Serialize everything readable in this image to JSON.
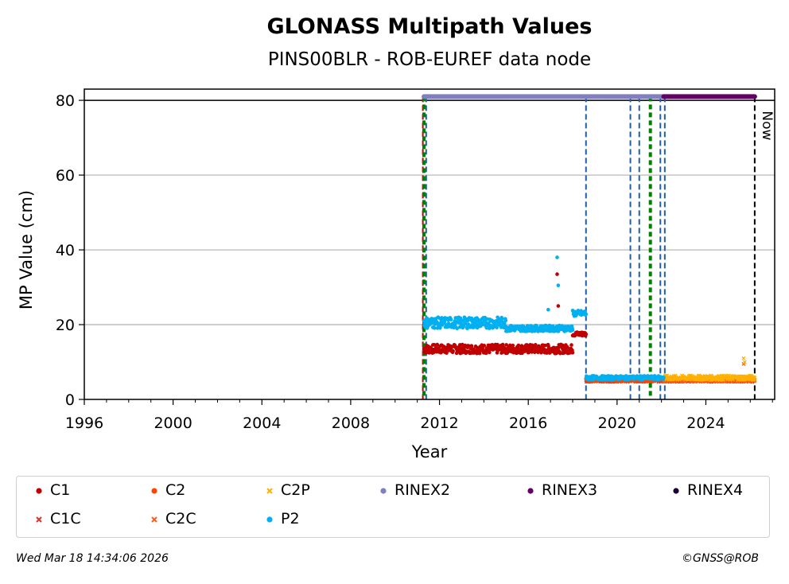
{
  "chart_data": {
    "type": "scatter",
    "title": "GLONASS Multipath Values",
    "subtitle": "PINS00BLR - ROB-EUREF data node",
    "xlabel": "Year",
    "ylabel": "MP Value (cm)",
    "xlim": [
      1996,
      2027.1
    ],
    "ylim": [
      0,
      83
    ],
    "xticks": [
      1996,
      2000,
      2004,
      2008,
      2012,
      2016,
      2020,
      2024
    ],
    "yticks": [
      0,
      20,
      40,
      60,
      80
    ],
    "grid": "horizontal",
    "legend_position": "bottom",
    "now_label": "Now",
    "now_year": 2026.2,
    "status_line_value": 81,
    "rinex_periods": [
      {
        "format": "RINEX2",
        "start": 2011.3,
        "end": 2022.1
      },
      {
        "format": "RINEX3",
        "start": 2022.1,
        "end": 2026.2
      }
    ],
    "event_lines": [
      {
        "type": "receiver_change",
        "year": 2011.25,
        "color": "#c00000"
      },
      {
        "type": "antenna_change",
        "year": 2011.3,
        "color": "#008000"
      },
      {
        "type": "equipment_change",
        "year": 2011.4,
        "color": "#1f5fa8"
      },
      {
        "type": "equipment_change",
        "year": 2018.6,
        "color": "#1f5fa8"
      },
      {
        "type": "equipment_change",
        "year": 2020.6,
        "color": "#1f5fa8"
      },
      {
        "type": "equipment_change",
        "year": 2021.0,
        "color": "#1f5fa8"
      },
      {
        "type": "antenna_change",
        "year": 2021.5,
        "color": "#008000"
      },
      {
        "type": "equipment_change",
        "year": 2021.95,
        "color": "#1f5fa8"
      },
      {
        "type": "equipment_change",
        "year": 2022.15,
        "color": "#1f5fa8"
      }
    ],
    "series": [
      {
        "name": "C1",
        "color": "#c00000",
        "marker": "dot",
        "segments": [
          {
            "start": 2011.3,
            "end": 2018.0,
            "level": 13.5,
            "spread": 1.2
          },
          {
            "start": 2018.0,
            "end": 2018.6,
            "level": 17.5,
            "spread": 0.6
          }
        ],
        "outliers": [
          [
            2017.3,
            33.5
          ],
          [
            2017.35,
            25
          ]
        ]
      },
      {
        "name": "C1C",
        "color": "#e0302a",
        "marker": "x",
        "segments": [
          {
            "start": 2018.6,
            "end": 2026.2,
            "level": 5.0,
            "spread": 0.3
          }
        ],
        "outliers": []
      },
      {
        "name": "C2",
        "color": "#ff4500",
        "marker": "dot",
        "segments": [
          {
            "start": 2018.6,
            "end": 2022.1,
            "level": 5.2,
            "spread": 0.3
          }
        ],
        "outliers": []
      },
      {
        "name": "C2C",
        "color": "#ff5a1a",
        "marker": "x",
        "segments": [
          {
            "start": 2022.1,
            "end": 2026.2,
            "level": 5.2,
            "spread": 0.4
          }
        ],
        "outliers": [
          [
            2025.7,
            9.5
          ]
        ]
      },
      {
        "name": "C2P",
        "color": "#ffb000",
        "marker": "x",
        "segments": [
          {
            "start": 2022.1,
            "end": 2026.2,
            "level": 5.8,
            "spread": 0.6
          }
        ],
        "outliers": [
          [
            2025.7,
            11
          ],
          [
            2025.75,
            10
          ]
        ]
      },
      {
        "name": "P2",
        "color": "#00b0f0",
        "marker": "dot",
        "segments": [
          {
            "start": 2011.3,
            "end": 2015.0,
            "level": 20.5,
            "spread": 1.5
          },
          {
            "start": 2015.0,
            "end": 2018.0,
            "level": 19.0,
            "spread": 0.8
          },
          {
            "start": 2018.0,
            "end": 2018.6,
            "level": 23.0,
            "spread": 0.8
          },
          {
            "start": 2018.6,
            "end": 2022.1,
            "level": 5.8,
            "spread": 0.5
          }
        ],
        "outliers": [
          [
            2017.3,
            38
          ],
          [
            2017.35,
            30.5
          ],
          [
            2016.9,
            24
          ]
        ]
      }
    ]
  },
  "legend": {
    "items": [
      {
        "label": "C1",
        "color": "#c00000",
        "marker": "dot"
      },
      {
        "label": "C2",
        "color": "#ff4500",
        "marker": "dot"
      },
      {
        "label": "C2P",
        "color": "#ffb000",
        "marker": "x"
      },
      {
        "label": "RINEX2",
        "color": "#8080c0",
        "marker": "dot"
      },
      {
        "label": "RINEX3",
        "color": "#660066",
        "marker": "dot"
      },
      {
        "label": "RINEX4",
        "color": "#1a0033",
        "marker": "dot"
      },
      {
        "label": "C1C",
        "color": "#e0302a",
        "marker": "x"
      },
      {
        "label": "C2C",
        "color": "#ff5a1a",
        "marker": "x"
      },
      {
        "label": "P2",
        "color": "#00b0f0",
        "marker": "dot"
      }
    ]
  },
  "footer": {
    "timestamp": "Wed Mar 18 14:34:06 2026",
    "copyright": "©GNSS@ROB"
  }
}
